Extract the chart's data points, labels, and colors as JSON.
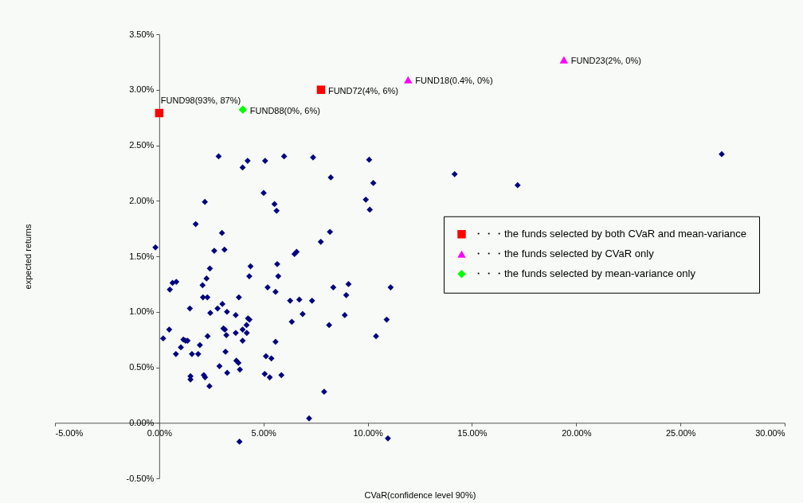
{
  "chart_data": {
    "type": "scatter",
    "xlabel": "CVaR(confidence level 90%)",
    "ylabel": "expected returns",
    "xlim": [
      -5,
      30
    ],
    "xticks": [
      {
        "value": -5,
        "label": "-5.00%"
      },
      {
        "value": 0,
        "label": "0.00%"
      },
      {
        "value": 5,
        "label": "5.00%"
      },
      {
        "value": 10,
        "label": "10.00%"
      },
      {
        "value": 15,
        "label": "15.00%"
      },
      {
        "value": 20,
        "label": "20.00%"
      },
      {
        "value": 25,
        "label": "25.00%"
      },
      {
        "value": 30,
        "label": "30.00%"
      }
    ],
    "ylim": [
      -0.5,
      3.5
    ],
    "yticks": [
      {
        "value": -0.5,
        "label": "-0.50%"
      },
      {
        "value": 0,
        "label": "0.00%"
      },
      {
        "value": 0.5,
        "label": "0.50%"
      },
      {
        "value": 1,
        "label": "1.00%"
      },
      {
        "value": 1.5,
        "label": "1.50%"
      },
      {
        "value": 2,
        "label": "2.00%"
      },
      {
        "value": 2.5,
        "label": "2.50%"
      },
      {
        "value": 3,
        "label": "3.00%"
      },
      {
        "value": 3.5,
        "label": "3.50%"
      }
    ],
    "legend": "right",
    "series": [
      {
        "color": "#000080",
        "marker": "diamond",
        "x": [
          2.85,
          4.0,
          4.24,
          5.08,
          5.99,
          7.38,
          10.07,
          8.23,
          10.27,
          2.19,
          5.01,
          5.53,
          5.63,
          9.91,
          10.1,
          1.75,
          3.01,
          8.19,
          7.75,
          -0.18,
          2.64,
          3.13,
          6.49,
          6.59,
          14.17,
          17.19,
          26.98,
          4.38,
          4.32,
          5.66,
          5.71,
          2.43,
          2.27,
          0.64,
          0.82,
          0.51,
          2.08,
          2.1,
          2.31,
          3.82,
          5.2,
          5.58,
          6.28,
          6.72,
          7.33,
          8.35,
          9.08,
          8.97,
          11.1,
          1.47,
          3.03,
          2.8,
          3.25,
          2.45,
          3.67,
          6.88,
          8.9,
          10.91,
          6.36,
          4.26,
          4.33,
          4.19,
          8.15,
          0.48,
          3.08,
          3.15,
          4.0,
          4.2,
          3.67,
          3.22,
          2.32,
          0.19,
          1.16,
          1.26,
          1.36,
          4.0,
          5.58,
          10.4,
          1.95,
          1.04,
          0.8,
          1.57,
          1.87,
          3.18,
          5.12,
          5.38,
          3.7,
          3.8,
          2.89,
          3.87,
          3.26,
          5.06,
          5.3,
          5.86,
          2.14,
          2.2,
          1.5,
          1.5,
          2.41,
          7.91,
          7.19,
          3.85,
          10.97
        ],
        "values": [
          2.4,
          2.3,
          2.36,
          2.36,
          2.4,
          2.39,
          2.37,
          2.21,
          2.16,
          1.99,
          2.07,
          1.97,
          1.91,
          2.01,
          1.92,
          1.79,
          1.71,
          1.72,
          1.63,
          1.58,
          1.55,
          1.56,
          1.52,
          1.54,
          2.24,
          2.14,
          2.42,
          1.41,
          1.32,
          1.43,
          1.32,
          1.39,
          1.3,
          1.26,
          1.27,
          1.2,
          1.24,
          1.13,
          1.13,
          1.13,
          1.22,
          1.18,
          1.1,
          1.11,
          1.1,
          1.22,
          1.25,
          1.15,
          1.22,
          1.03,
          1.07,
          1.03,
          1.0,
          0.99,
          0.97,
          0.98,
          0.97,
          0.93,
          0.91,
          0.94,
          0.93,
          0.88,
          0.88,
          0.84,
          0.85,
          0.84,
          0.84,
          0.81,
          0.81,
          0.79,
          0.78,
          0.76,
          0.75,
          0.74,
          0.74,
          0.74,
          0.73,
          0.78,
          0.7,
          0.68,
          0.62,
          0.62,
          0.62,
          0.64,
          0.6,
          0.58,
          0.56,
          0.54,
          0.51,
          0.48,
          0.45,
          0.44,
          0.41,
          0.43,
          0.43,
          0.41,
          0.42,
          0.39,
          0.33,
          0.28,
          0.04,
          -0.17,
          -0.14
        ]
      },
      {
        "name": "・・・the funds selected by both CVaR and mean-variance",
        "color": "#ff0000",
        "marker": "square",
        "x": [
          0,
          7.76
        ],
        "values": [
          2.79,
          3.0
        ]
      },
      {
        "name": "・・・the funds selected by CVaR only",
        "color": "#ff00ff",
        "marker": "triangle",
        "x": [
          11.94,
          19.41
        ],
        "values": [
          3.09,
          3.27
        ]
      },
      {
        "name": "・・・the funds selected by mean-variance only",
        "color": "#00ff00",
        "marker": "diamond",
        "x": [
          4.01
        ],
        "values": [
          2.82
        ]
      }
    ],
    "annotations": [
      {
        "text": "FUND98(93%, 87%)",
        "x": 0,
        "y": 2.79
      },
      {
        "text": "FUND72(4%, 6%)",
        "x": 7.76,
        "y": 3.0
      },
      {
        "text": "FUND18(0.4%, 0%)",
        "x": 11.94,
        "y": 3.09
      },
      {
        "text": "FUND23(2%, 0%)",
        "x": 19.41,
        "y": 3.27
      },
      {
        "text": "FUND88(0%, 6%)",
        "x": 4.01,
        "y": 2.82
      }
    ]
  }
}
